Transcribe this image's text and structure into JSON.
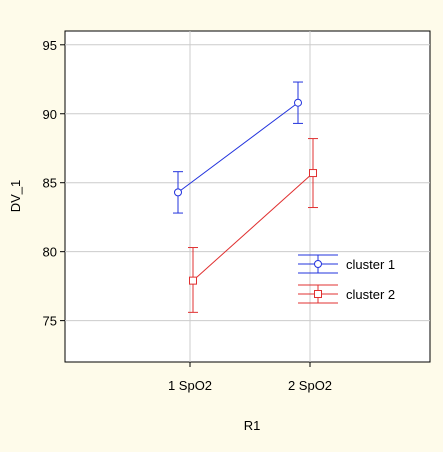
{
  "chart_data": {
    "type": "line",
    "title": "",
    "xlabel": "R1",
    "ylabel": "DV_1",
    "categories": [
      "1 SpO2",
      "2 SpO2"
    ],
    "ylim": [
      72,
      96
    ],
    "yticks": [
      "75",
      "80",
      "85",
      "90",
      "95"
    ],
    "grid": true,
    "legend_position": "right",
    "series": [
      {
        "name": "cluster 1",
        "color": "#2233dd",
        "marker": "circle",
        "values": [
          84.3,
          90.8
        ],
        "error_low": [
          82.8,
          89.3
        ],
        "error_high": [
          85.8,
          92.3
        ]
      },
      {
        "name": "cluster 2",
        "color": "#e03030",
        "marker": "square",
        "values": [
          77.9,
          85.7
        ],
        "error_low": [
          75.6,
          83.2
        ],
        "error_high": [
          80.3,
          88.2
        ]
      }
    ]
  },
  "colors": {
    "background": "#fefbea",
    "plot_background": "#ffffff",
    "grid": "#cccccc"
  }
}
